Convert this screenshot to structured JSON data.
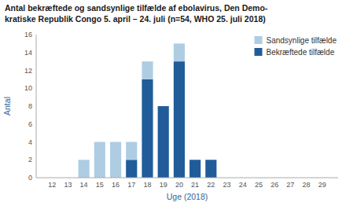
{
  "chart_data": {
    "type": "bar",
    "stacked": true,
    "title": "Antal bekræftede og sandsynlige tilfælde af ebolavirus, Den Demo-",
    "subtitle": "kratiske Republik Congo 5. april – 24. juli (n=54, WHO 25. juli 2018)",
    "x_label": "Uge (2018)",
    "y_label": "Antal",
    "x": [
      12,
      13,
      14,
      15,
      16,
      17,
      18,
      19,
      20,
      21,
      22,
      23,
      24,
      25,
      26,
      27,
      28,
      29
    ],
    "xlim": [
      11,
      30
    ],
    "xticks": [
      12,
      13,
      14,
      15,
      16,
      17,
      18,
      19,
      20,
      21,
      22,
      23,
      24,
      25,
      26,
      27,
      28,
      29
    ],
    "ylim": [
      0,
      16
    ],
    "yticks": [
      0,
      2,
      4,
      6,
      8,
      10,
      12,
      14,
      16
    ],
    "grid": false,
    "legend": "upper right",
    "series": [
      {
        "name": "Bekræftede tilfælde",
        "color": "#1f5c99",
        "values": [
          0,
          0,
          0,
          0,
          0,
          2,
          11,
          8,
          13,
          2,
          2,
          0,
          0,
          0,
          0,
          0,
          0,
          0
        ]
      },
      {
        "name": "Sandsynlige tilfælde",
        "color": "#aecde3",
        "values": [
          0,
          0,
          2,
          4,
          4,
          2,
          2,
          0,
          2,
          0,
          0,
          0,
          0,
          0,
          0,
          0,
          0,
          0
        ]
      }
    ]
  }
}
